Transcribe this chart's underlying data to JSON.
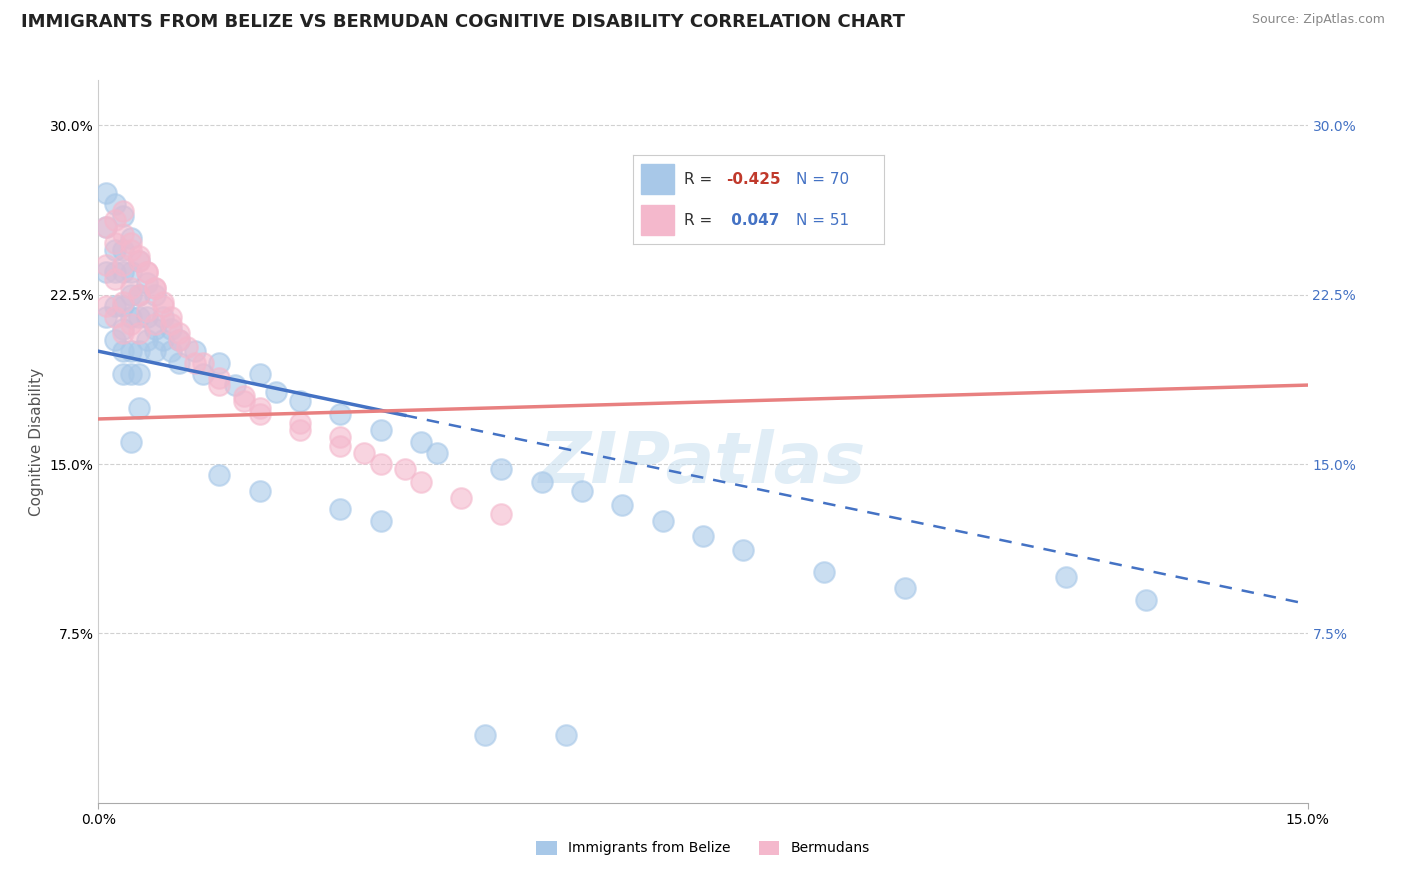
{
  "title": "IMMIGRANTS FROM BELIZE VS BERMUDAN COGNITIVE DISABILITY CORRELATION CHART",
  "source_text": "Source: ZipAtlas.com",
  "ylabel": "Cognitive Disability",
  "xlim": [
    0.0,
    0.15
  ],
  "ylim": [
    0.0,
    0.32
  ],
  "ytick_labels": [
    "7.5%",
    "15.0%",
    "22.5%",
    "30.0%"
  ],
  "ytick_values": [
    0.075,
    0.15,
    0.225,
    0.3
  ],
  "color_blue": "#a8c8e8",
  "color_pink": "#f4b8cc",
  "color_blue_line": "#4472c4",
  "color_pink_line": "#e88080",
  "watermark": "ZIPatlas",
  "label1": "Immigrants from Belize",
  "label2": "Bermudans",
  "blue_points_x": [
    0.001,
    0.001,
    0.001,
    0.001,
    0.002,
    0.002,
    0.002,
    0.002,
    0.002,
    0.003,
    0.003,
    0.003,
    0.003,
    0.003,
    0.003,
    0.003,
    0.004,
    0.004,
    0.004,
    0.004,
    0.004,
    0.004,
    0.005,
    0.005,
    0.005,
    0.005,
    0.005,
    0.006,
    0.006,
    0.006,
    0.007,
    0.007,
    0.007,
    0.008,
    0.008,
    0.009,
    0.009,
    0.01,
    0.01,
    0.012,
    0.013,
    0.015,
    0.017,
    0.02,
    0.022,
    0.025,
    0.03,
    0.035,
    0.04,
    0.042,
    0.05,
    0.055,
    0.06,
    0.065,
    0.07,
    0.075,
    0.08,
    0.09,
    0.1,
    0.048,
    0.058,
    0.12,
    0.13,
    0.005,
    0.004,
    0.015,
    0.02,
    0.03,
    0.035
  ],
  "blue_points_y": [
    0.27,
    0.255,
    0.235,
    0.215,
    0.265,
    0.245,
    0.235,
    0.22,
    0.205,
    0.26,
    0.245,
    0.235,
    0.22,
    0.21,
    0.2,
    0.19,
    0.25,
    0.235,
    0.225,
    0.215,
    0.2,
    0.19,
    0.24,
    0.225,
    0.215,
    0.2,
    0.19,
    0.23,
    0.215,
    0.205,
    0.225,
    0.21,
    0.2,
    0.215,
    0.205,
    0.21,
    0.2,
    0.205,
    0.195,
    0.2,
    0.19,
    0.195,
    0.185,
    0.19,
    0.182,
    0.178,
    0.172,
    0.165,
    0.16,
    0.155,
    0.148,
    0.142,
    0.138,
    0.132,
    0.125,
    0.118,
    0.112,
    0.102,
    0.095,
    0.03,
    0.03,
    0.1,
    0.09,
    0.175,
    0.16,
    0.145,
    0.138,
    0.13,
    0.125
  ],
  "pink_points_x": [
    0.001,
    0.001,
    0.001,
    0.002,
    0.002,
    0.002,
    0.003,
    0.003,
    0.003,
    0.003,
    0.004,
    0.004,
    0.004,
    0.005,
    0.005,
    0.005,
    0.006,
    0.006,
    0.007,
    0.007,
    0.008,
    0.009,
    0.01,
    0.011,
    0.013,
    0.015,
    0.018,
    0.02,
    0.025,
    0.03,
    0.033,
    0.038,
    0.04,
    0.045,
    0.05,
    0.002,
    0.003,
    0.004,
    0.005,
    0.006,
    0.007,
    0.008,
    0.009,
    0.01,
    0.012,
    0.015,
    0.018,
    0.02,
    0.025,
    0.03,
    0.035
  ],
  "pink_points_y": [
    0.255,
    0.238,
    0.22,
    0.248,
    0.232,
    0.215,
    0.252,
    0.238,
    0.222,
    0.208,
    0.245,
    0.228,
    0.212,
    0.24,
    0.225,
    0.208,
    0.235,
    0.218,
    0.228,
    0.212,
    0.222,
    0.215,
    0.208,
    0.202,
    0.195,
    0.188,
    0.18,
    0.175,
    0.168,
    0.162,
    0.155,
    0.148,
    0.142,
    0.135,
    0.128,
    0.258,
    0.262,
    0.248,
    0.242,
    0.235,
    0.228,
    0.22,
    0.212,
    0.205,
    0.195,
    0.185,
    0.178,
    0.172,
    0.165,
    0.158,
    0.15
  ],
  "blue_line_xstart": 0.0,
  "blue_line_ystart": 0.2,
  "blue_line_xend": 0.15,
  "blue_line_yend": 0.088,
  "blue_solid_xend": 0.038,
  "pink_line_xstart": 0.0,
  "pink_line_ystart": 0.17,
  "pink_line_xend": 0.15,
  "pink_line_yend": 0.185,
  "background_color": "#ffffff",
  "grid_color": "#cccccc",
  "title_fontsize": 13,
  "axis_label_fontsize": 11,
  "tick_fontsize": 10,
  "watermark_fontsize": 52,
  "watermark_color": "#c8dff0",
  "watermark_alpha": 0.55
}
